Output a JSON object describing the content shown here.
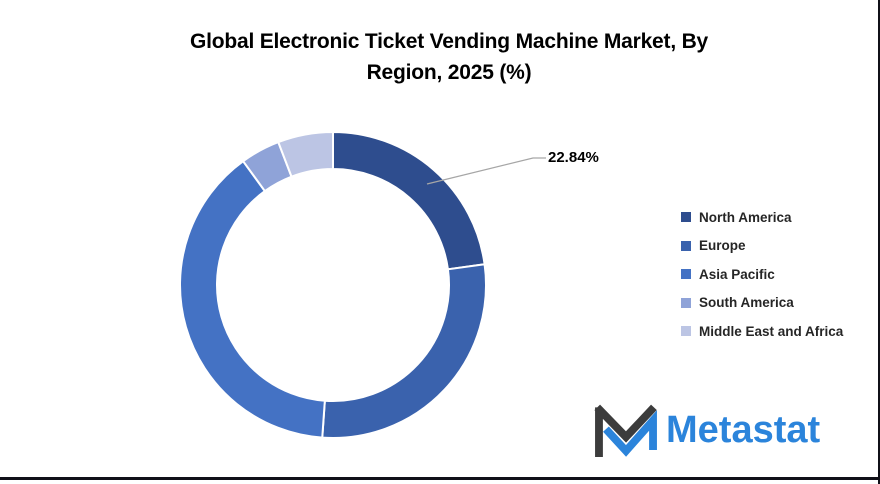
{
  "page": {
    "background": "#ffffff",
    "border_color": "#101018"
  },
  "header": {
    "title_line1": "Global Electronic Ticket Vending Machine Market, By",
    "title_line2": "Region, 2025 (%)"
  },
  "chart_data": {
    "type": "pie",
    "subtype": "donut",
    "title": "Global Electronic Ticket Vending Machine Market, By Region, 2025 (%)",
    "categories": [
      "North America",
      "Europe",
      "Asia Pacific",
      "South America",
      "Middle East and Africa"
    ],
    "values": [
      22.84,
      28.28,
      38.89,
      4.17,
      5.82
    ],
    "colors": [
      "#2E4D8E",
      "#3A62AD",
      "#4472C4",
      "#8FA3D8",
      "#BCC5E4"
    ],
    "data_labels": [
      {
        "category": "North America",
        "text": "22.84%"
      }
    ],
    "start_angle_deg": 0,
    "direction": "clockwise",
    "hole_ratio": 0.76,
    "gap_color": "#ffffff",
    "legend_position": "right",
    "grid": false
  },
  "callout": {
    "label": "22.84%",
    "line_color": "#A6A6A6"
  },
  "branding": {
    "logo_text": "Metastat",
    "text_color": "#2B84DB",
    "icon_dark_color": "#3C3C3C",
    "icon_blue_color": "#2B84DB"
  }
}
